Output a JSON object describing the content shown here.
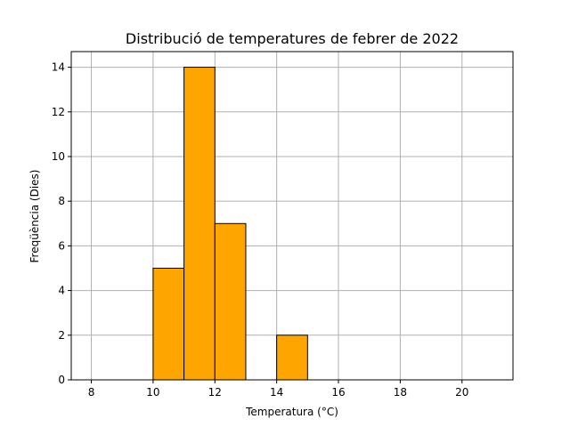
{
  "chart_data": {
    "type": "bar",
    "title": "Distribució de temperatures de febrer de 2022",
    "xlabel": "Temperatura (°C)",
    "ylabel": "Freqüència (Dies)",
    "xlim": [
      7.35,
      21.65
    ],
    "ylim": [
      0,
      14.7
    ],
    "xticks": [
      8,
      10,
      12,
      14,
      16,
      18,
      20
    ],
    "yticks": [
      0,
      2,
      4,
      6,
      8,
      10,
      12,
      14
    ],
    "grid": true,
    "bar_color": "#FFA500",
    "bins": [
      {
        "x0": 8,
        "x1": 9,
        "value": 0
      },
      {
        "x0": 9,
        "x1": 10,
        "value": 0
      },
      {
        "x0": 10,
        "x1": 11,
        "value": 5
      },
      {
        "x0": 11,
        "x1": 12,
        "value": 14
      },
      {
        "x0": 12,
        "x1": 13,
        "value": 7
      },
      {
        "x0": 13,
        "x1": 14,
        "value": 0
      },
      {
        "x0": 14,
        "x1": 15,
        "value": 2
      },
      {
        "x0": 15,
        "x1": 16,
        "value": 0
      },
      {
        "x0": 16,
        "x1": 17,
        "value": 0
      },
      {
        "x0": 17,
        "x1": 18,
        "value": 0
      },
      {
        "x0": 18,
        "x1": 19,
        "value": 0
      },
      {
        "x0": 19,
        "x1": 20,
        "value": 0
      },
      {
        "x0": 20,
        "x1": 21,
        "value": 0
      }
    ]
  }
}
